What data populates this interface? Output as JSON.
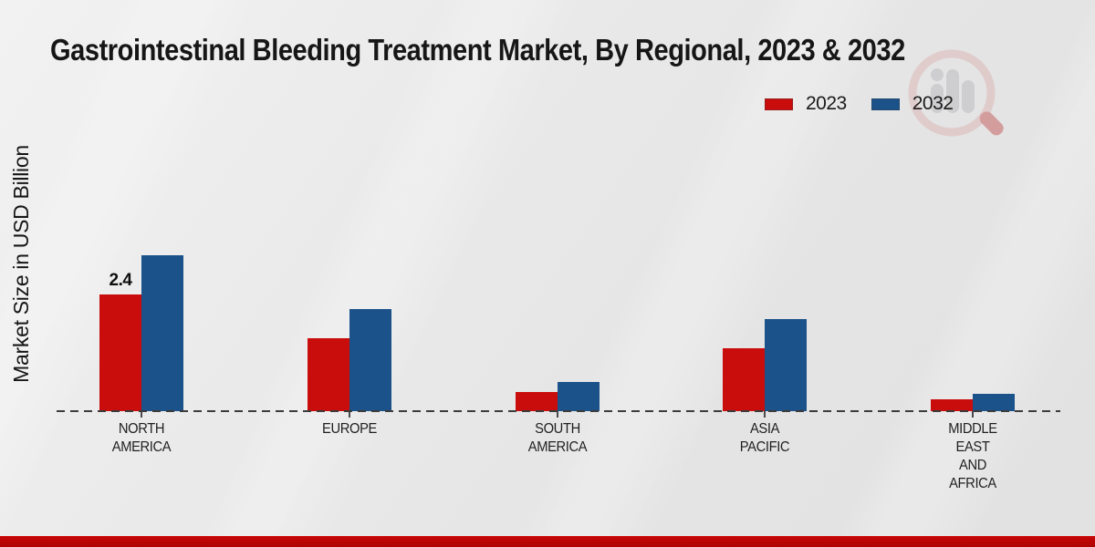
{
  "chart_data": {
    "type": "bar",
    "title": "Gastrointestinal Bleeding Treatment Market, By Regional, 2023 & 2032",
    "ylabel": "Market Size in USD Billion",
    "xlabel": "",
    "categories": [
      "NORTH AMERICA",
      "EUROPE",
      "SOUTH AMERICA",
      "ASIA PACIFIC",
      "MIDDLE EAST AND AFRICA"
    ],
    "category_label_lines": [
      [
        "NORTH",
        "AMERICA"
      ],
      [
        "EUROPE"
      ],
      [
        "SOUTH",
        "AMERICA"
      ],
      [
        "ASIA",
        "PACIFIC"
      ],
      [
        "MIDDLE",
        "EAST",
        "AND",
        "AFRICA"
      ]
    ],
    "series": [
      {
        "name": "2023",
        "color": "#c90d0d",
        "values": [
          2.4,
          1.5,
          0.4,
          1.3,
          0.25
        ],
        "data_labels": [
          "2.4",
          "",
          "",
          "",
          ""
        ]
      },
      {
        "name": "2032",
        "color": "#1b5289",
        "values": [
          3.2,
          2.1,
          0.6,
          1.9,
          0.35
        ],
        "data_labels": [
          "",
          "",
          "",
          "",
          ""
        ]
      }
    ],
    "ylim": [
      0,
      3.5
    ],
    "grid": false,
    "legend_position": "top-right",
    "baseline_style": "dashed",
    "unit": "USD Billion"
  },
  "watermark": {
    "icon": "magnifier-bar-chart-logo"
  },
  "colors": {
    "background": "#e9e9e9",
    "series_2023": "#c90d0d",
    "series_2032": "#1b5289",
    "axis_line": "#3c3c3c",
    "title_text": "#161616",
    "footer_band": "#c00505"
  }
}
